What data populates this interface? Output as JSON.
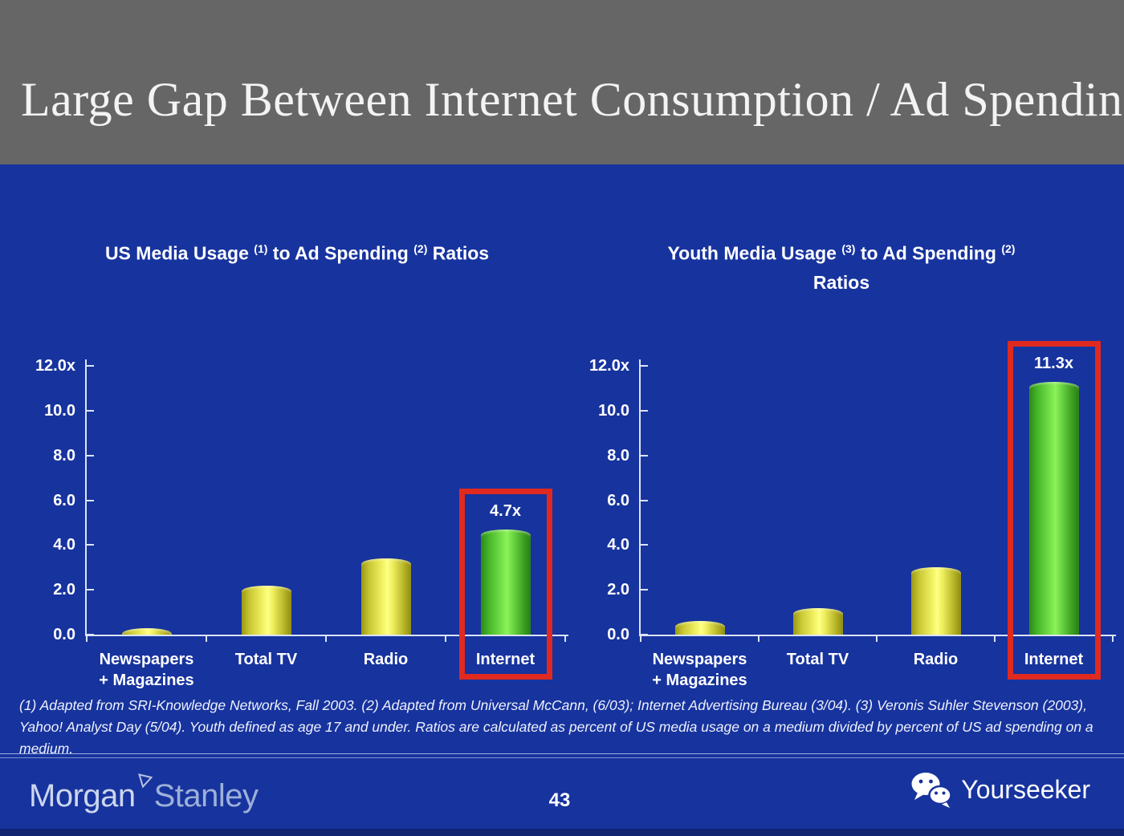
{
  "header": {
    "title": "Large Gap Between Internet Consumption / Ad Spending"
  },
  "chart_data": [
    {
      "type": "bar",
      "title": "US Media Usage (1) to Ad Spending (2) Ratios",
      "title_segments": [
        {
          "text": "US Media Usage "
        },
        {
          "sup": "(1)"
        },
        {
          "text": " to Ad Spending "
        },
        {
          "sup": "(2)"
        },
        {
          "text": " Ratios"
        }
      ],
      "categories": [
        "Newspapers + Magazines",
        "Total TV",
        "Radio",
        "Internet"
      ],
      "category_lines": [
        [
          "Newspapers",
          "+ Magazines"
        ],
        [
          "Total TV"
        ],
        [
          "Radio"
        ],
        [
          "Internet"
        ]
      ],
      "values": [
        0.3,
        2.2,
        3.4,
        4.7
      ],
      "bar_colors": [
        "yellow",
        "yellow",
        "yellow",
        "green"
      ],
      "highlight_index": 3,
      "highlight_value_label": "4.7x",
      "ylim": [
        0,
        12
      ],
      "yticks": [
        {
          "v": 12,
          "label": "12.0x"
        },
        {
          "v": 10,
          "label": "10.0"
        },
        {
          "v": 8,
          "label": "8.0"
        },
        {
          "v": 6,
          "label": "6.0"
        },
        {
          "v": 4,
          "label": "4.0"
        },
        {
          "v": 2,
          "label": "2.0"
        },
        {
          "v": 0,
          "label": "0.0"
        }
      ],
      "grid": false,
      "legend": null
    },
    {
      "type": "bar",
      "title": "Youth Media Usage (3) to Ad Spending (2) Ratios",
      "title_segments": [
        {
          "text": "Youth Media Usage "
        },
        {
          "sup": "(3)"
        },
        {
          "text": " to Ad Spending "
        },
        {
          "sup": "(2)"
        },
        {
          "br": true
        },
        {
          "text": "Ratios"
        }
      ],
      "categories": [
        "Newspapers + Magazines",
        "Total TV",
        "Radio",
        "Internet"
      ],
      "category_lines": [
        [
          "Newspapers",
          "+ Magazines"
        ],
        [
          "Total TV"
        ],
        [
          "Radio"
        ],
        [
          "Internet"
        ]
      ],
      "values": [
        0.6,
        1.2,
        3.0,
        11.3
      ],
      "bar_colors": [
        "yellow",
        "yellow",
        "yellow",
        "green"
      ],
      "highlight_index": 3,
      "highlight_value_label": "11.3x",
      "ylim": [
        0,
        12
      ],
      "yticks": [
        {
          "v": 12,
          "label": "12.0x"
        },
        {
          "v": 10,
          "label": "10.0"
        },
        {
          "v": 8,
          "label": "8.0"
        },
        {
          "v": 6,
          "label": "6.0"
        },
        {
          "v": 4,
          "label": "4.0"
        },
        {
          "v": 2,
          "label": "2.0"
        },
        {
          "v": 0,
          "label": "0.0"
        }
      ],
      "grid": false,
      "legend": null
    }
  ],
  "footnote": "(1) Adapted from SRI-Knowledge Networks, Fall 2003.  (2) Adapted from Universal McCann, (6/03); Internet Advertising Bureau (3/04). (3) Veronis Suhler Stevenson (2003), Yahoo! Analyst Day (5/04).  Youth defined as age 17 and under.  Ratios are calculated as percent of US media usage on a medium divided by percent of US ad spending on a medium.",
  "footer": {
    "page_number": "43",
    "brand": {
      "part1": "Morgan",
      "part2": "Stanley"
    },
    "watermark": "Yourseeker"
  },
  "colors": {
    "slide_background": "#17339e",
    "header_background": "#666666",
    "highlight_red": "#e02a1f",
    "bar_yellow": "#f0ef5a",
    "bar_green": "#6cd743",
    "axis_line": "#dbe4f7",
    "text_white": "#ffffff",
    "brand_text": "#b7c4e2"
  }
}
